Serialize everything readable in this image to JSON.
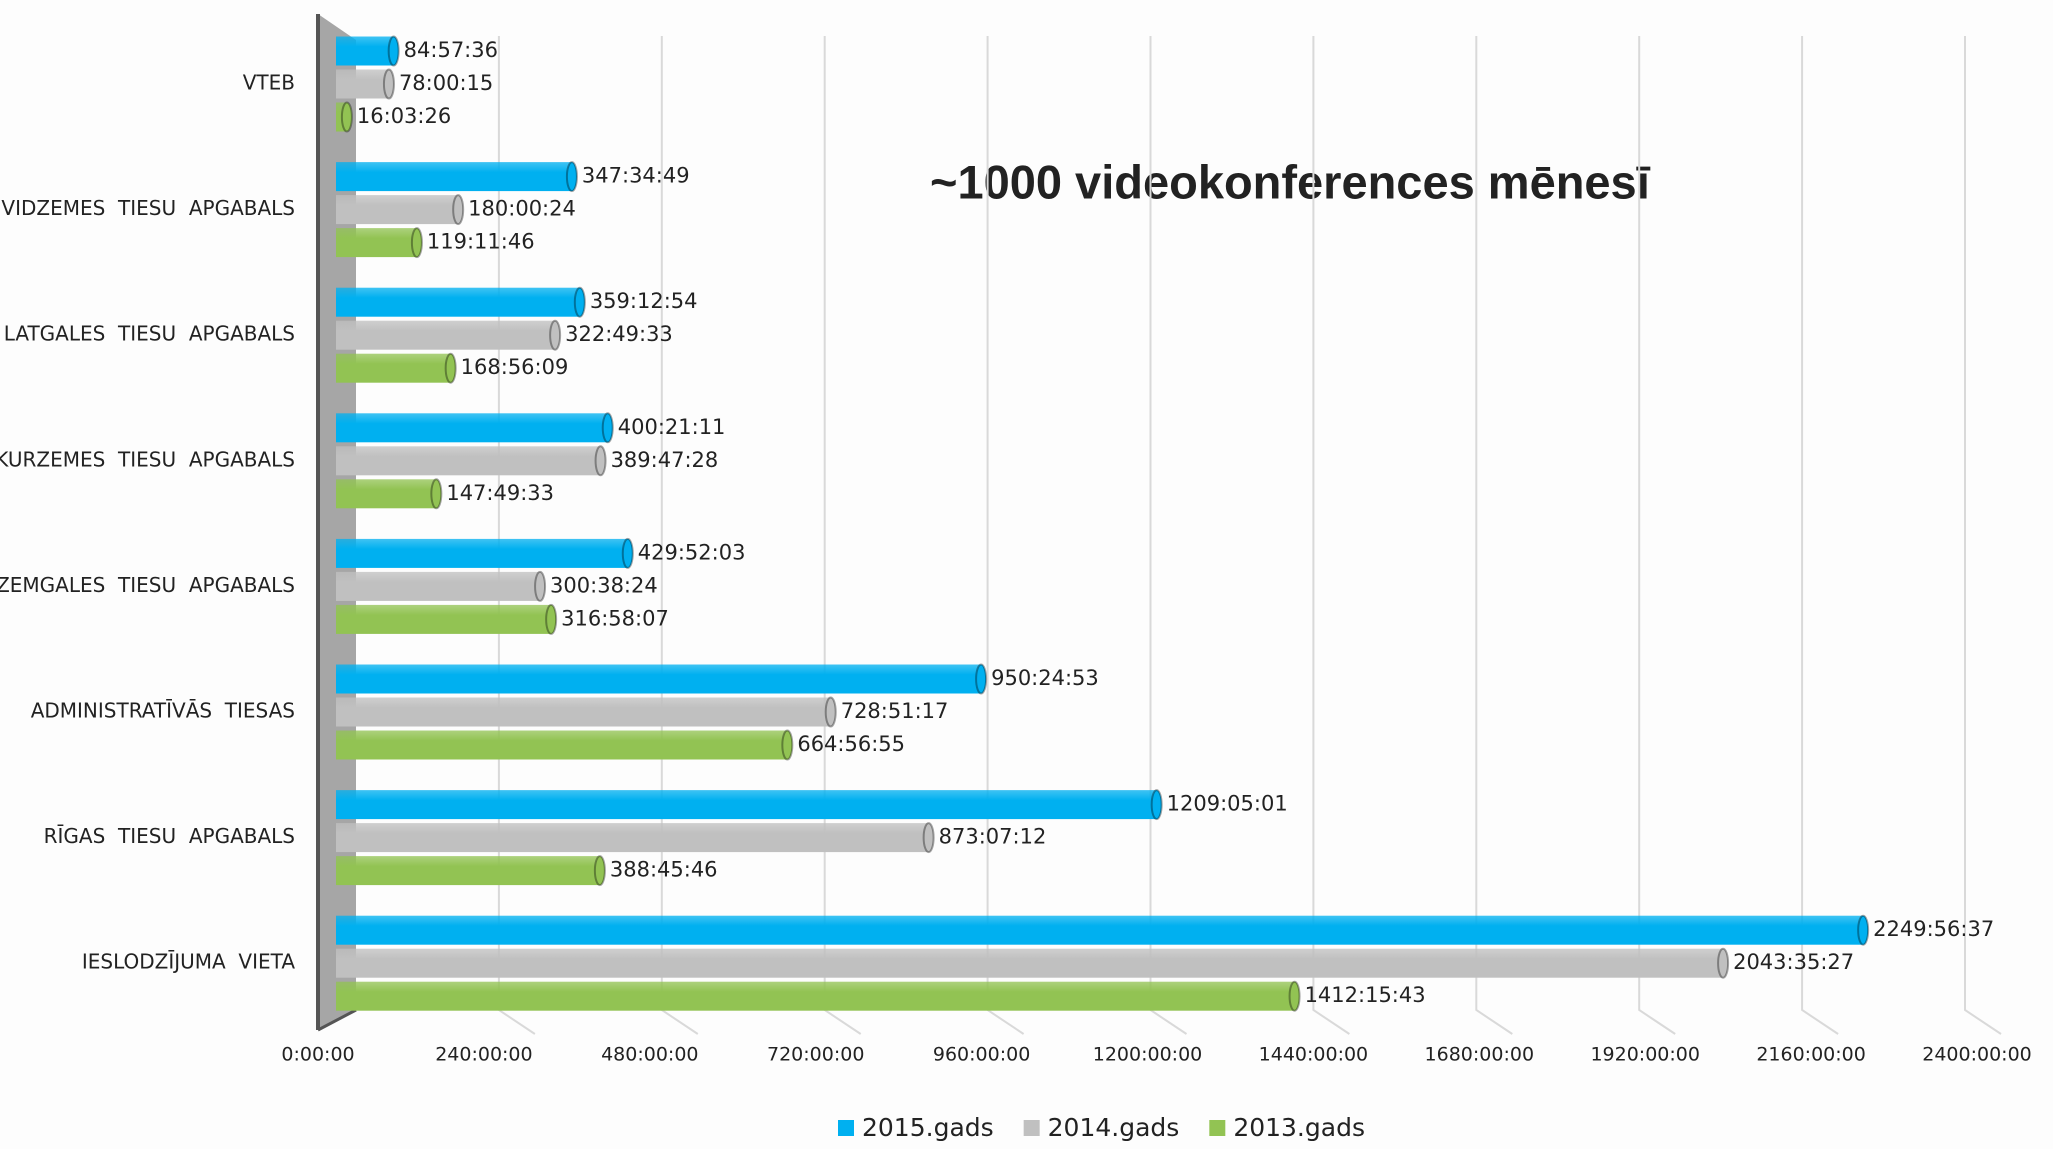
{
  "chart_data": {
    "type": "barh",
    "annotation": "~1000 videokonferences mēnesī",
    "categories": [
      "VTEB",
      "VIDZEMES  TIESU  APGABALS",
      "LATGALES  TIESU  APGABALS",
      "KURZEMES  TIESU  APGABALS",
      "ZEMGALES  TIESU  APGABALS",
      "ADMINISTRATĪVĀS  TIESAS",
      "RĪGAS  TIESU  APGABALS",
      "IESLODZĪJUMA  VIETA"
    ],
    "series": [
      {
        "name": "2015.gads",
        "color": "#00b0f0",
        "values": [
          84.96,
          347.5803,
          359.215,
          400.3531,
          429.8675,
          950.4147,
          1209.0836,
          2249.9436
        ],
        "value_labels": [
          "84:57:36",
          "347:34:49",
          "359:12:54",
          "400:21:11",
          "429:52:03",
          "950:24:53",
          "1209:05:01",
          "2249:56:37"
        ]
      },
      {
        "name": "2014.gads",
        "color": "#c0c0c0",
        "values": [
          78.0042,
          180.0067,
          322.8258,
          389.7911,
          300.64,
          728.8547,
          873.12,
          2043.5908
        ],
        "value_labels": [
          "78:00:15",
          "180:00:24",
          "322:49:33",
          "389:47:28",
          "300:38:24",
          "728:51:17",
          "873:07:12",
          "2043:35:27"
        ]
      },
      {
        "name": "2013.gads",
        "color": "#92c353",
        "values": [
          16.0572,
          119.1961,
          168.9358,
          147.8258,
          316.9686,
          664.9486,
          388.7628,
          1412.2619
        ],
        "value_labels": [
          "16:03:26",
          "119:11:46",
          "168:56:09",
          "147:49:33",
          "316:58:07",
          "664:56:55",
          "388:45:46",
          "1412:15:43"
        ]
      }
    ],
    "xlim": [
      0,
      2400
    ],
    "xticks": [
      {
        "value": 0,
        "label": "0:00:00"
      },
      {
        "value": 240,
        "label": "240:00:00"
      },
      {
        "value": 480,
        "label": "480:00:00"
      },
      {
        "value": 720,
        "label": "720:00:00"
      },
      {
        "value": 960,
        "label": "960:00:00"
      },
      {
        "value": 1200,
        "label": "1200:00:00"
      },
      {
        "value": 1440,
        "label": "1440:00:00"
      },
      {
        "value": 1680,
        "label": "1680:00:00"
      },
      {
        "value": 1920,
        "label": "1920:00:00"
      },
      {
        "value": 2160,
        "label": "2160:00:00"
      },
      {
        "value": 2400,
        "label": "2400:00:00"
      }
    ],
    "grid": true,
    "legend": "bottom"
  }
}
